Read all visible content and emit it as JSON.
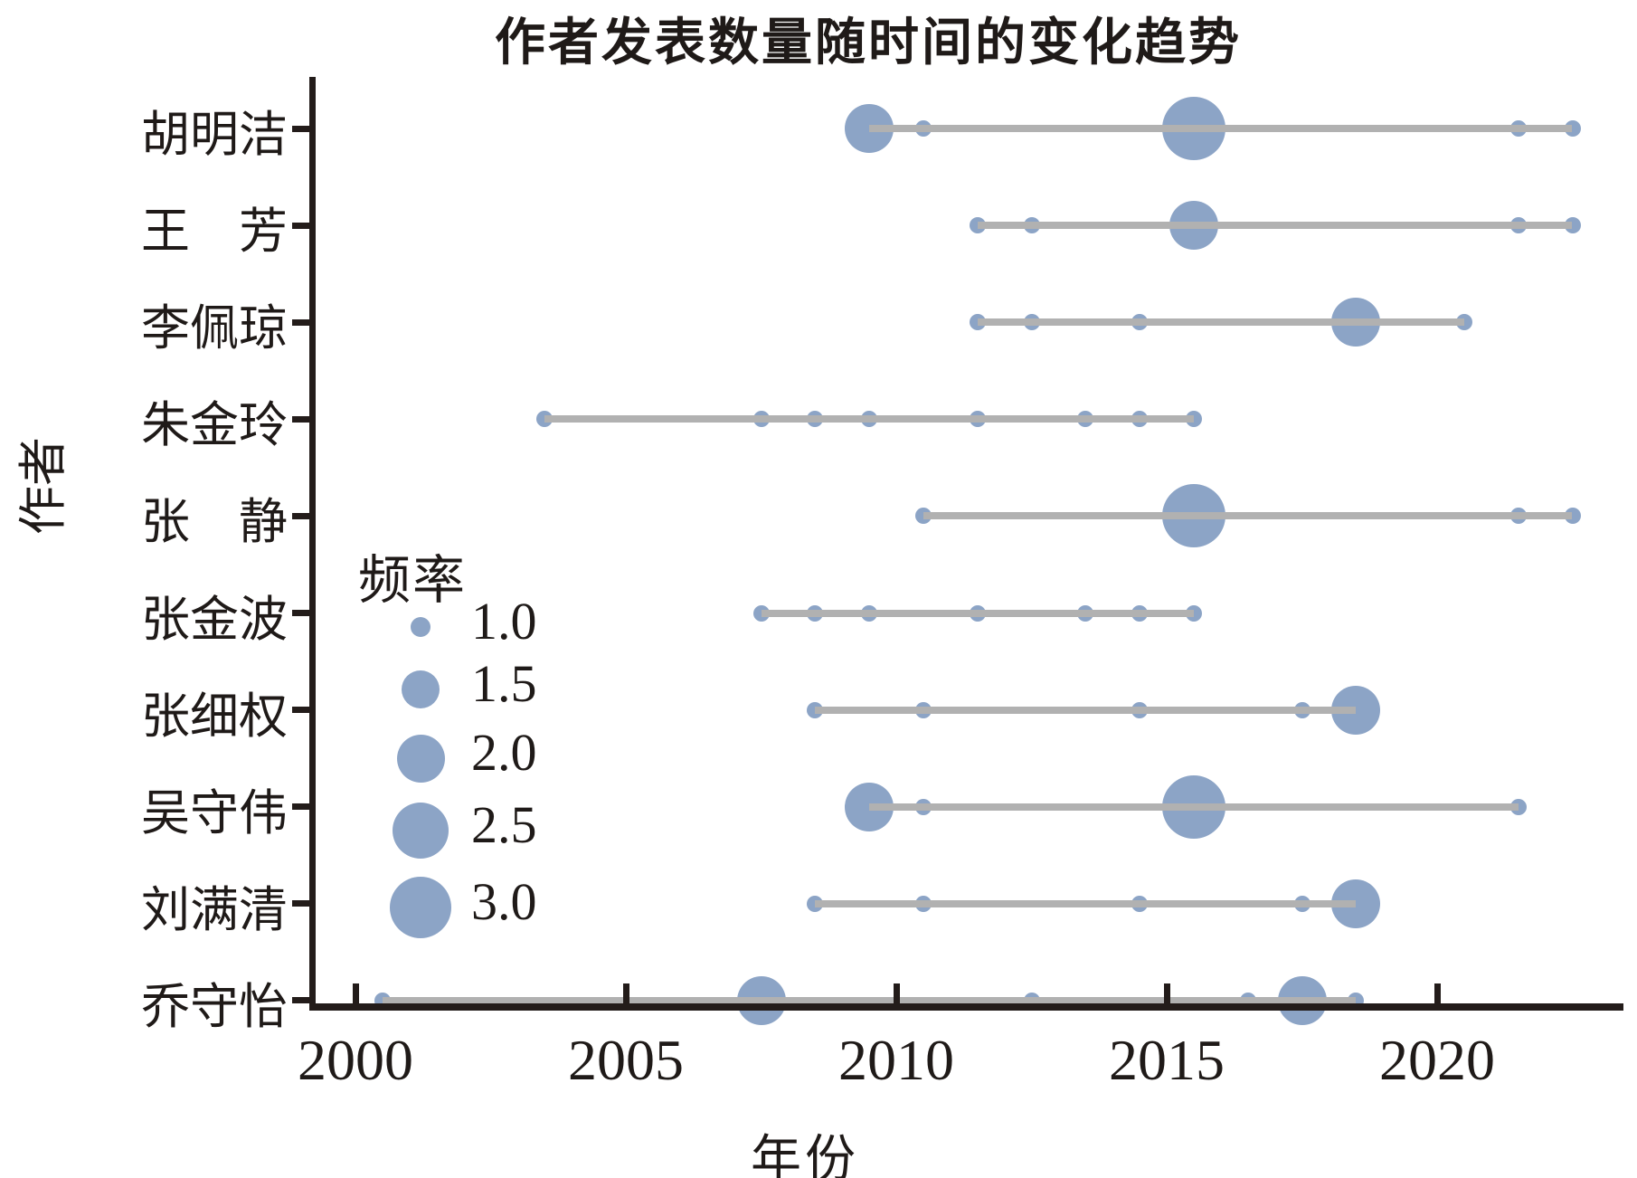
{
  "page_title": "作者发表数量随时间的变化趋势",
  "axes": {
    "x_label": "年份",
    "y_label": "作者",
    "x_tick_labels": [
      "2000",
      "2005",
      "2010",
      "2015",
      "2020"
    ]
  },
  "legend": {
    "title": "频率",
    "items": [
      "1.0",
      "1.5",
      "2.0",
      "2.5",
      "3.0"
    ]
  },
  "colors": {
    "bubble": "#8CA4C6",
    "connector_line": "#b1b1b1",
    "axis": "#231c1a",
    "text": "#1f1a18",
    "background": "#ffffff"
  },
  "chart_data": {
    "type": "scatter",
    "subtype": "bubble-timeline",
    "title": "作者发表数量随时间的变化趋势",
    "xlabel": "年份",
    "ylabel": "作者",
    "legend_title": "频率",
    "legend_values": [
      1.0,
      1.5,
      2.0,
      2.5,
      3.0
    ],
    "x_ticks": [
      2000,
      2005,
      2010,
      2015,
      2020
    ],
    "xlim": [
      1999.2,
      2023.4
    ],
    "grid": false,
    "legend_position": "inside-left-middle",
    "categories": [
      "胡明洁",
      "王　芳",
      "李佩琼",
      "朱金玲",
      "张　静",
      "张金波",
      "张细权",
      "吴守伟",
      "刘满清",
      "乔守怡"
    ],
    "series": [
      {
        "author": "胡明洁",
        "points": [
          {
            "year": 2009.5,
            "freq": 2.0
          },
          {
            "year": 2010.5,
            "freq": 1.0
          },
          {
            "year": 2015.5,
            "freq": 3.0
          },
          {
            "year": 2021.5,
            "freq": 1.0
          },
          {
            "year": 2022.5,
            "freq": 1.0
          }
        ]
      },
      {
        "author": "王　芳",
        "points": [
          {
            "year": 2011.5,
            "freq": 1.0
          },
          {
            "year": 2012.5,
            "freq": 1.0
          },
          {
            "year": 2015.5,
            "freq": 2.0
          },
          {
            "year": 2021.5,
            "freq": 1.0
          },
          {
            "year": 2022.5,
            "freq": 1.0
          }
        ]
      },
      {
        "author": "李佩琼",
        "points": [
          {
            "year": 2011.5,
            "freq": 1.0
          },
          {
            "year": 2012.5,
            "freq": 1.0
          },
          {
            "year": 2014.5,
            "freq": 1.0
          },
          {
            "year": 2018.5,
            "freq": 2.0
          },
          {
            "year": 2020.5,
            "freq": 1.0
          }
        ]
      },
      {
        "author": "朱金玲",
        "points": [
          {
            "year": 2003.5,
            "freq": 1.0
          },
          {
            "year": 2007.5,
            "freq": 1.0
          },
          {
            "year": 2008.5,
            "freq": 1.0
          },
          {
            "year": 2009.5,
            "freq": 1.0
          },
          {
            "year": 2011.5,
            "freq": 1.0
          },
          {
            "year": 2013.5,
            "freq": 1.0
          },
          {
            "year": 2014.5,
            "freq": 1.0
          },
          {
            "year": 2015.5,
            "freq": 1.0
          }
        ]
      },
      {
        "author": "张　静",
        "points": [
          {
            "year": 2010.5,
            "freq": 1.0
          },
          {
            "year": 2015.5,
            "freq": 3.0
          },
          {
            "year": 2021.5,
            "freq": 1.0
          },
          {
            "year": 2022.5,
            "freq": 1.0
          }
        ]
      },
      {
        "author": "张金波",
        "points": [
          {
            "year": 2007.5,
            "freq": 1.0
          },
          {
            "year": 2008.5,
            "freq": 1.0
          },
          {
            "year": 2009.5,
            "freq": 1.0
          },
          {
            "year": 2011.5,
            "freq": 1.0
          },
          {
            "year": 2013.5,
            "freq": 1.0
          },
          {
            "year": 2014.5,
            "freq": 1.0
          },
          {
            "year": 2015.5,
            "freq": 1.0
          }
        ]
      },
      {
        "author": "张细权",
        "points": [
          {
            "year": 2008.5,
            "freq": 1.0
          },
          {
            "year": 2010.5,
            "freq": 1.0
          },
          {
            "year": 2014.5,
            "freq": 1.0
          },
          {
            "year": 2017.5,
            "freq": 1.0
          },
          {
            "year": 2018.5,
            "freq": 2.0
          }
        ]
      },
      {
        "author": "吴守伟",
        "points": [
          {
            "year": 2009.5,
            "freq": 2.0
          },
          {
            "year": 2010.5,
            "freq": 1.0
          },
          {
            "year": 2015.5,
            "freq": 3.0
          },
          {
            "year": 2021.5,
            "freq": 1.0
          }
        ]
      },
      {
        "author": "刘满清",
        "points": [
          {
            "year": 2008.5,
            "freq": 1.0
          },
          {
            "year": 2010.5,
            "freq": 1.0
          },
          {
            "year": 2014.5,
            "freq": 1.0
          },
          {
            "year": 2017.5,
            "freq": 1.0
          },
          {
            "year": 2018.5,
            "freq": 2.0
          }
        ]
      },
      {
        "author": "乔守怡",
        "points": [
          {
            "year": 2000.5,
            "freq": 1.0
          },
          {
            "year": 2007.5,
            "freq": 2.0
          },
          {
            "year": 2012.5,
            "freq": 1.0
          },
          {
            "year": 2016.5,
            "freq": 1.0
          },
          {
            "year": 2017.5,
            "freq": 2.0
          },
          {
            "year": 2018.5,
            "freq": 1.0
          }
        ]
      }
    ]
  }
}
